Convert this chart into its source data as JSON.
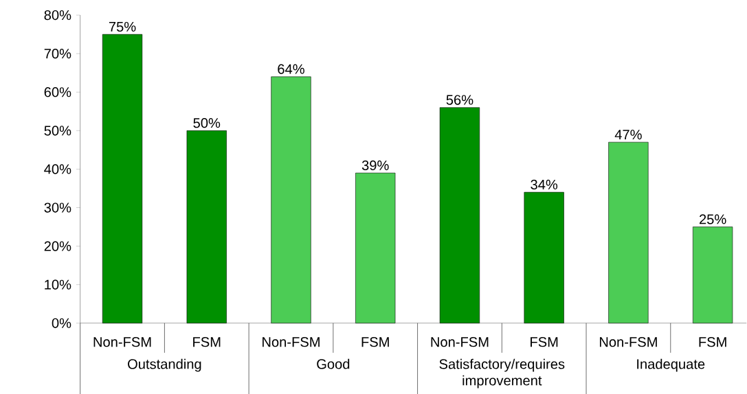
{
  "chart_data": {
    "type": "bar",
    "categories": [
      "Non-FSM",
      "FSM",
      "Non-FSM",
      "FSM",
      "Non-FSM",
      "FSM",
      "Non-FSM",
      "FSM"
    ],
    "values": [
      75,
      50,
      64,
      39,
      56,
      34,
      47,
      25
    ],
    "colors": [
      "#009000",
      "#009000",
      "#4ccc55",
      "#4ccc55",
      "#009000",
      "#009000",
      "#4ccc55",
      "#4ccc55"
    ],
    "value_labels": [
      "75%",
      "50%",
      "64%",
      "39%",
      "56%",
      "34%",
      "47%",
      "25%"
    ],
    "annotations": [
      "Outstanding",
      "Good",
      "Satisfactory/requires improvement",
      "Inadequate"
    ],
    "ylim": [
      0,
      80
    ],
    "yticks": [
      {
        "value": 0,
        "label": "0%"
      },
      {
        "value": 10,
        "label": "10%"
      },
      {
        "value": 20,
        "label": "20%"
      },
      {
        "value": 30,
        "label": "30%"
      },
      {
        "value": 40,
        "label": "40%"
      },
      {
        "value": 50,
        "label": "50%"
      },
      {
        "value": 60,
        "label": "60%"
      },
      {
        "value": 70,
        "label": "70%"
      },
      {
        "value": 80,
        "label": "80%"
      }
    ],
    "grid": false
  }
}
